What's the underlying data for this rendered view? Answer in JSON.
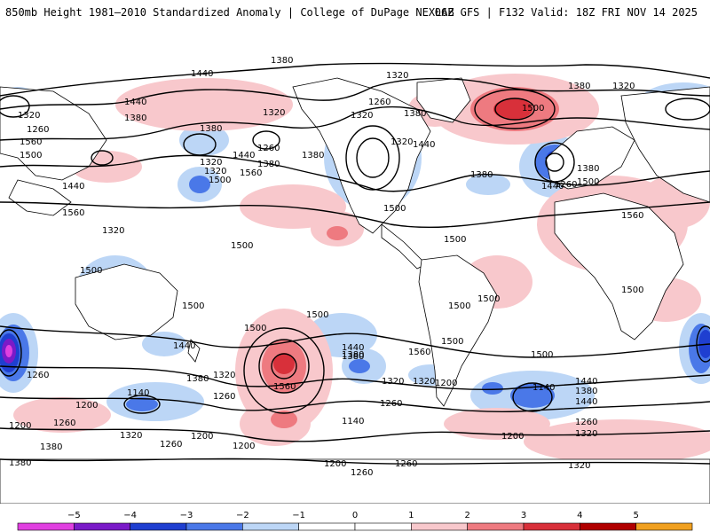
{
  "header": {
    "title": "850mb Height 1981–2010 Standardized Anomaly | College of DuPage NEXLAB",
    "model_info": "06Z GFS | F132 Valid: 18Z FRI NOV 14 2025"
  },
  "colors": {
    "neg5": "#e040e0",
    "neg4": "#7a1ac8",
    "neg3": "#1f3fd0",
    "neg2": "#4a78e8",
    "neg1": "#bcd6f6",
    "pos1": "#f8c8cc",
    "pos2": "#ee7a80",
    "pos3": "#d8303a",
    "pos4": "#b00000",
    "pos5": "#f0a020"
  },
  "map": {
    "height_labels": [
      "1380",
      "1440",
      "1320",
      "1440",
      "1380",
      "1320",
      "1260",
      "1380",
      "1320",
      "1260",
      "1380",
      "1320",
      "1440",
      "1380",
      "1320",
      "1440",
      "1380",
      "1500",
      "1500",
      "1560",
      "1500",
      "1440",
      "1500",
      "1320",
      "1260",
      "1380",
      "1320",
      "1500",
      "1560",
      "1500",
      "1380",
      "1260",
      "1380",
      "1320",
      "1320",
      "1440",
      "1500",
      "1560",
      "1500",
      "1500",
      "1500",
      "1440",
      "1380",
      "1500",
      "1560",
      "1500",
      "1500",
      "1500",
      "1440",
      "1380",
      "1320",
      "1560",
      "1320",
      "1320",
      "1200",
      "1260",
      "1140",
      "1380",
      "1440",
      "1260",
      "1200",
      "1140",
      "1380",
      "1440",
      "1260",
      "1200",
      "1320",
      "1260",
      "1200",
      "1200",
      "1260",
      "1380",
      "1200",
      "1260",
      "1320",
      "1140",
      "1200",
      "1260",
      "1320",
      "1380",
      "1560",
      "1500",
      "1260",
      "1500"
    ]
  },
  "colorbar": {
    "ticks": [
      "−5",
      "−4",
      "−3",
      "−2",
      "−1",
      "0",
      "1",
      "2",
      "3",
      "4",
      "5"
    ]
  }
}
